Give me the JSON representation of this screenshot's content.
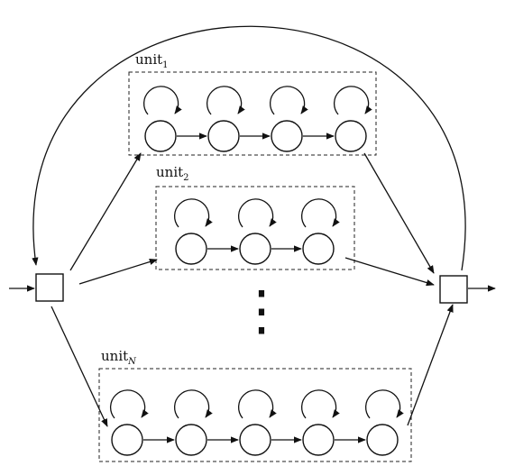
{
  "diagram": {
    "units": [
      {
        "label": "unit",
        "subscript": "1",
        "states": 4
      },
      {
        "label": "unit",
        "subscript": "2",
        "states": 3
      },
      {
        "label": "unit",
        "subscript": "N",
        "states": 5
      }
    ],
    "ellipsis": "⋮",
    "colors": {
      "stroke": "#111111",
      "background": "#ffffff"
    }
  }
}
